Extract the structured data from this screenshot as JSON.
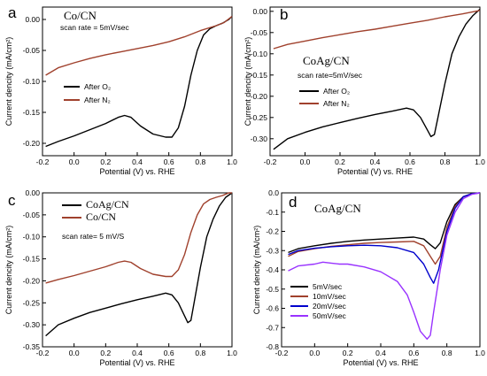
{
  "chart_data": [
    {
      "panel": "a",
      "type": "line",
      "title": "Co/CN",
      "annotation": "scan rate = 5mV/sec",
      "xlabel": "Potential (V) vs. RHE",
      "ylabel": "Current dencity (mA/cm²)",
      "xlim": [
        -0.2,
        1.0
      ],
      "ylim": [
        -0.22,
        0.02
      ],
      "xticks": [
        -0.2,
        0.0,
        0.2,
        0.4,
        0.6,
        0.8,
        1.0
      ],
      "yticks": [
        0.0,
        -0.05,
        -0.1,
        -0.15,
        -0.2
      ],
      "xtick_labels": [
        "-0.2",
        "0.0",
        "0.2",
        "0.4",
        "0.6",
        "0.8",
        "1.0"
      ],
      "ytick_labels": [
        "0.00",
        "-0.05",
        "-0.10",
        "-0.15",
        "-0.20"
      ],
      "legend_position": "center-left",
      "series": [
        {
          "name": "After O₂",
          "color": "#000000",
          "x": [
            -0.18,
            -0.1,
            0.0,
            0.1,
            0.2,
            0.28,
            0.32,
            0.36,
            0.42,
            0.5,
            0.58,
            0.62,
            0.66,
            0.7,
            0.74,
            0.78,
            0.82,
            0.86,
            0.9,
            0.94,
            0.98,
            1.0
          ],
          "y": [
            -0.205,
            -0.197,
            -0.188,
            -0.178,
            -0.168,
            -0.158,
            -0.155,
            -0.158,
            -0.172,
            -0.185,
            -0.19,
            -0.19,
            -0.175,
            -0.14,
            -0.09,
            -0.05,
            -0.025,
            -0.015,
            -0.01,
            -0.006,
            0.0,
            0.005
          ]
        },
        {
          "name": "After N₂",
          "color": "#a0412d",
          "x": [
            -0.18,
            -0.1,
            0.0,
            0.1,
            0.2,
            0.3,
            0.4,
            0.5,
            0.6,
            0.7,
            0.8,
            0.9,
            0.95,
            1.0
          ],
          "y": [
            -0.09,
            -0.078,
            -0.07,
            -0.063,
            -0.057,
            -0.052,
            -0.047,
            -0.042,
            -0.036,
            -0.028,
            -0.018,
            -0.01,
            -0.005,
            0.005
          ]
        }
      ]
    },
    {
      "panel": "b",
      "type": "line",
      "title": "CoAg/CN",
      "annotation": "scan rate=5mV/sec",
      "xlabel": "Potential (V) vs. RHE",
      "ylabel": "Current dencity (mA/cm²)",
      "xlim": [
        -0.2,
        1.0
      ],
      "ylim": [
        -0.34,
        0.01
      ],
      "xticks": [
        -0.2,
        0.0,
        0.2,
        0.4,
        0.6,
        0.8,
        1.0
      ],
      "yticks": [
        0.0,
        -0.05,
        -0.1,
        -0.15,
        -0.2,
        -0.25,
        -0.3
      ],
      "xtick_labels": [
        "-0.2",
        "0.0",
        "0.2",
        "0.4",
        "0.6",
        "0.8",
        "1.0"
      ],
      "ytick_labels": [
        "0.00",
        "-0.05",
        "-0.10",
        "-0.15",
        "-0.20",
        "-0.25",
        "-0.30"
      ],
      "legend_position": "center-left",
      "series": [
        {
          "name": "After O₂",
          "color": "#000000",
          "x": [
            -0.18,
            -0.1,
            0.0,
            0.1,
            0.2,
            0.3,
            0.4,
            0.5,
            0.58,
            0.62,
            0.66,
            0.7,
            0.72,
            0.74,
            0.76,
            0.8,
            0.84,
            0.88,
            0.92,
            0.96,
            1.0
          ],
          "y": [
            -0.325,
            -0.3,
            -0.285,
            -0.272,
            -0.262,
            -0.252,
            -0.243,
            -0.235,
            -0.228,
            -0.232,
            -0.25,
            -0.28,
            -0.295,
            -0.29,
            -0.25,
            -0.17,
            -0.1,
            -0.06,
            -0.03,
            -0.01,
            0.005
          ]
        },
        {
          "name": "After N₂",
          "color": "#a0412d",
          "x": [
            -0.18,
            -0.1,
            0.0,
            0.1,
            0.2,
            0.3,
            0.4,
            0.5,
            0.6,
            0.7,
            0.8,
            0.9,
            1.0
          ],
          "y": [
            -0.088,
            -0.078,
            -0.07,
            -0.062,
            -0.055,
            -0.048,
            -0.042,
            -0.035,
            -0.028,
            -0.021,
            -0.013,
            -0.006,
            0.002
          ]
        }
      ]
    },
    {
      "panel": "c",
      "type": "line",
      "title": "",
      "annotation": "scan rate= 5 mV/S",
      "xlabel": "Potential (V) vs. RHE",
      "ylabel": "Current dencity (mA/cm²)",
      "xlim": [
        -0.2,
        1.0
      ],
      "ylim": [
        -0.35,
        0.0
      ],
      "xticks": [
        -0.2,
        0.0,
        0.2,
        0.4,
        0.6,
        0.8,
        1.0
      ],
      "yticks": [
        0.0,
        -0.05,
        -0.1,
        -0.15,
        -0.2,
        -0.25,
        -0.3,
        -0.35
      ],
      "xtick_labels": [
        "-0.2",
        "0.0",
        "0.2",
        "0.4",
        "0.6",
        "0.8",
        "1.0"
      ],
      "ytick_labels": [
        "0.00",
        "-0.05",
        "-0.10",
        "-0.15",
        "-0.20",
        "-0.25",
        "-0.30",
        "-0.35"
      ],
      "legend_position": "top-left",
      "series": [
        {
          "name": "CoAg/CN",
          "color": "#000000",
          "x": [
            -0.18,
            -0.1,
            0.0,
            0.1,
            0.2,
            0.3,
            0.4,
            0.5,
            0.58,
            0.62,
            0.66,
            0.7,
            0.72,
            0.74,
            0.76,
            0.8,
            0.84,
            0.88,
            0.92,
            0.96,
            1.0
          ],
          "y": [
            -0.325,
            -0.3,
            -0.285,
            -0.272,
            -0.262,
            -0.252,
            -0.243,
            -0.235,
            -0.228,
            -0.232,
            -0.25,
            -0.28,
            -0.295,
            -0.29,
            -0.25,
            -0.17,
            -0.1,
            -0.06,
            -0.03,
            -0.01,
            0.0
          ]
        },
        {
          "name": "Co/CN",
          "color": "#a0412d",
          "x": [
            -0.18,
            -0.1,
            0.0,
            0.1,
            0.2,
            0.28,
            0.32,
            0.36,
            0.42,
            0.5,
            0.58,
            0.62,
            0.66,
            0.7,
            0.74,
            0.78,
            0.82,
            0.86,
            0.9,
            0.94,
            0.98,
            1.0
          ],
          "y": [
            -0.205,
            -0.197,
            -0.188,
            -0.178,
            -0.168,
            -0.158,
            -0.155,
            -0.158,
            -0.172,
            -0.185,
            -0.19,
            -0.19,
            -0.175,
            -0.14,
            -0.09,
            -0.05,
            -0.025,
            -0.015,
            -0.01,
            -0.006,
            0.0,
            0.0
          ]
        }
      ]
    },
    {
      "panel": "d",
      "type": "line",
      "title": "CoAg/CN",
      "annotation": "",
      "xlabel": "Potential (V) vs. RHE",
      "ylabel": "Current dencity (mA/cm²)",
      "xlim": [
        -0.2,
        1.0
      ],
      "ylim": [
        -0.8,
        0.0
      ],
      "xticks": [
        -0.2,
        0.0,
        0.2,
        0.4,
        0.6,
        0.8,
        1.0
      ],
      "yticks": [
        0.0,
        -0.1,
        -0.2,
        -0.3,
        -0.4,
        -0.5,
        -0.6,
        -0.7,
        -0.8
      ],
      "xtick_labels": [
        "-0.2",
        "0.0",
        "0.2",
        "0.4",
        "0.6",
        "0.8",
        "1.0"
      ],
      "ytick_labels": [
        "0.0",
        "-0.1",
        "-0.2",
        "-0.3",
        "-0.4",
        "-0.5",
        "-0.6",
        "-0.7",
        "-0.8"
      ],
      "legend_position": "bottom-left",
      "series": [
        {
          "name": "5mV/sec",
          "color": "#000000",
          "x": [
            -0.16,
            -0.1,
            0.0,
            0.1,
            0.2,
            0.3,
            0.4,
            0.5,
            0.6,
            0.66,
            0.7,
            0.73,
            0.76,
            0.8,
            0.85,
            0.9,
            0.95,
            1.0
          ],
          "y": [
            -0.31,
            -0.29,
            -0.275,
            -0.262,
            -0.252,
            -0.245,
            -0.24,
            -0.235,
            -0.23,
            -0.24,
            -0.27,
            -0.29,
            -0.26,
            -0.15,
            -0.06,
            -0.02,
            -0.005,
            0.0
          ]
        },
        {
          "name": "10mV/sec",
          "color": "#a0412d",
          "x": [
            -0.16,
            -0.1,
            0.0,
            0.1,
            0.2,
            0.3,
            0.4,
            0.5,
            0.6,
            0.66,
            0.7,
            0.73,
            0.76,
            0.8,
            0.85,
            0.9,
            0.95,
            1.0
          ],
          "y": [
            -0.33,
            -0.305,
            -0.29,
            -0.278,
            -0.27,
            -0.262,
            -0.258,
            -0.255,
            -0.252,
            -0.275,
            -0.33,
            -0.37,
            -0.33,
            -0.18,
            -0.07,
            -0.02,
            -0.005,
            0.0
          ]
        },
        {
          "name": "20mV/sec",
          "color": "#0000cc",
          "x": [
            -0.16,
            -0.1,
            0.0,
            0.1,
            0.2,
            0.3,
            0.4,
            0.5,
            0.6,
            0.66,
            0.7,
            0.72,
            0.75,
            0.8,
            0.85,
            0.9,
            0.95,
            1.0
          ],
          "y": [
            -0.32,
            -0.3,
            -0.288,
            -0.28,
            -0.275,
            -0.272,
            -0.275,
            -0.285,
            -0.31,
            -0.37,
            -0.44,
            -0.47,
            -0.4,
            -0.2,
            -0.08,
            -0.02,
            -0.005,
            0.0
          ]
        },
        {
          "name": "50mV/sec",
          "color": "#9933ff",
          "x": [
            -0.16,
            -0.1,
            0.0,
            0.05,
            0.1,
            0.15,
            0.2,
            0.3,
            0.4,
            0.5,
            0.56,
            0.6,
            0.64,
            0.68,
            0.7,
            0.72,
            0.76,
            0.8,
            0.85,
            0.9,
            0.95,
            1.0
          ],
          "y": [
            -0.405,
            -0.38,
            -0.37,
            -0.36,
            -0.365,
            -0.37,
            -0.37,
            -0.385,
            -0.41,
            -0.46,
            -0.53,
            -0.62,
            -0.72,
            -0.76,
            -0.74,
            -0.62,
            -0.4,
            -0.22,
            -0.1,
            -0.03,
            -0.008,
            0.0
          ]
        }
      ]
    }
  ]
}
